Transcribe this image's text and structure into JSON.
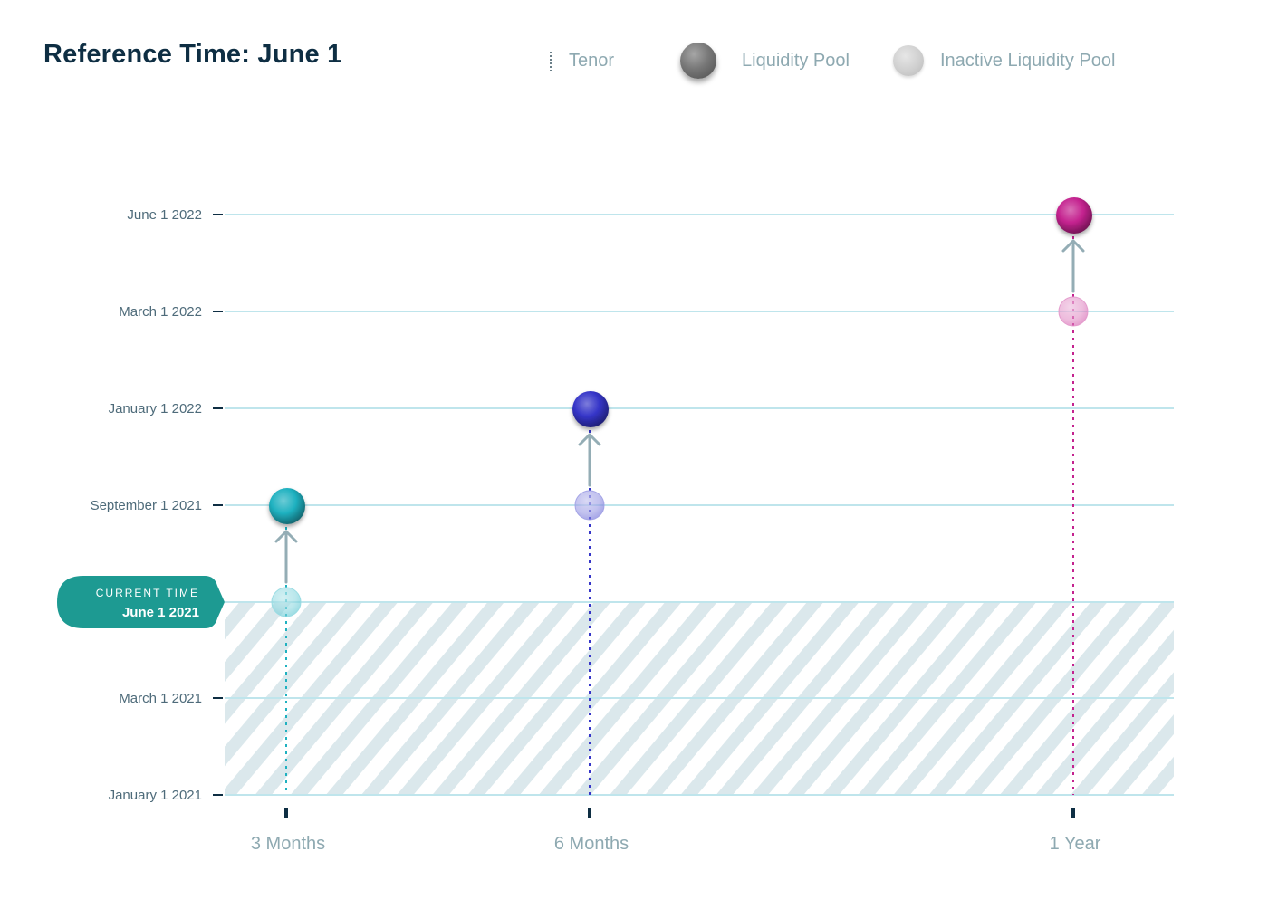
{
  "header": {
    "title": "Reference Time: June 1"
  },
  "legend": {
    "tenor_label": "Tenor",
    "pool_label": "Liquidity Pool",
    "inactive_label": "Inactive Liquidity Pool"
  },
  "colors": {
    "title": "#0e2e43",
    "callout": "#1d9a92",
    "gridline": "#bfe5ec",
    "hatch": "#dbe8ec",
    "arrow": "#94adb5"
  },
  "current_time": {
    "top_label": "CURRENT TIME",
    "date_label": "June 1 2021"
  },
  "chart_data": {
    "type": "scatter",
    "title": "Reference Time: June 1",
    "xlabel": "",
    "ylabel": "",
    "y_categories": [
      "January 1 2021",
      "March 1 2021",
      "June 1 2021",
      "September 1 2021",
      "January 1 2022",
      "March 1 2022",
      "June 1 2022"
    ],
    "y_axis_labels": [
      "January 1 2021",
      "March 1 2021",
      "September 1 2021",
      "January 1 2022",
      "March 1 2022",
      "June 1 2022"
    ],
    "x_categories": [
      "3 Months",
      "6 Months",
      "1 Year"
    ],
    "current_time": "June 1 2021",
    "past_region": [
      "January 1 2021",
      "June 1 2021"
    ],
    "series": [
      {
        "name": "3 Months",
        "color": "#1fb1c0",
        "active_pool": "September 1 2021",
        "inactive_pool": "June 1 2021"
      },
      {
        "name": "6 Months",
        "color": "#3535c8",
        "active_pool": "January 1 2022",
        "inactive_pool": "September 1 2021"
      },
      {
        "name": "1 Year",
        "color": "#c4228f",
        "active_pool": "June 1 2022",
        "inactive_pool": "March 1 2022"
      }
    ]
  }
}
